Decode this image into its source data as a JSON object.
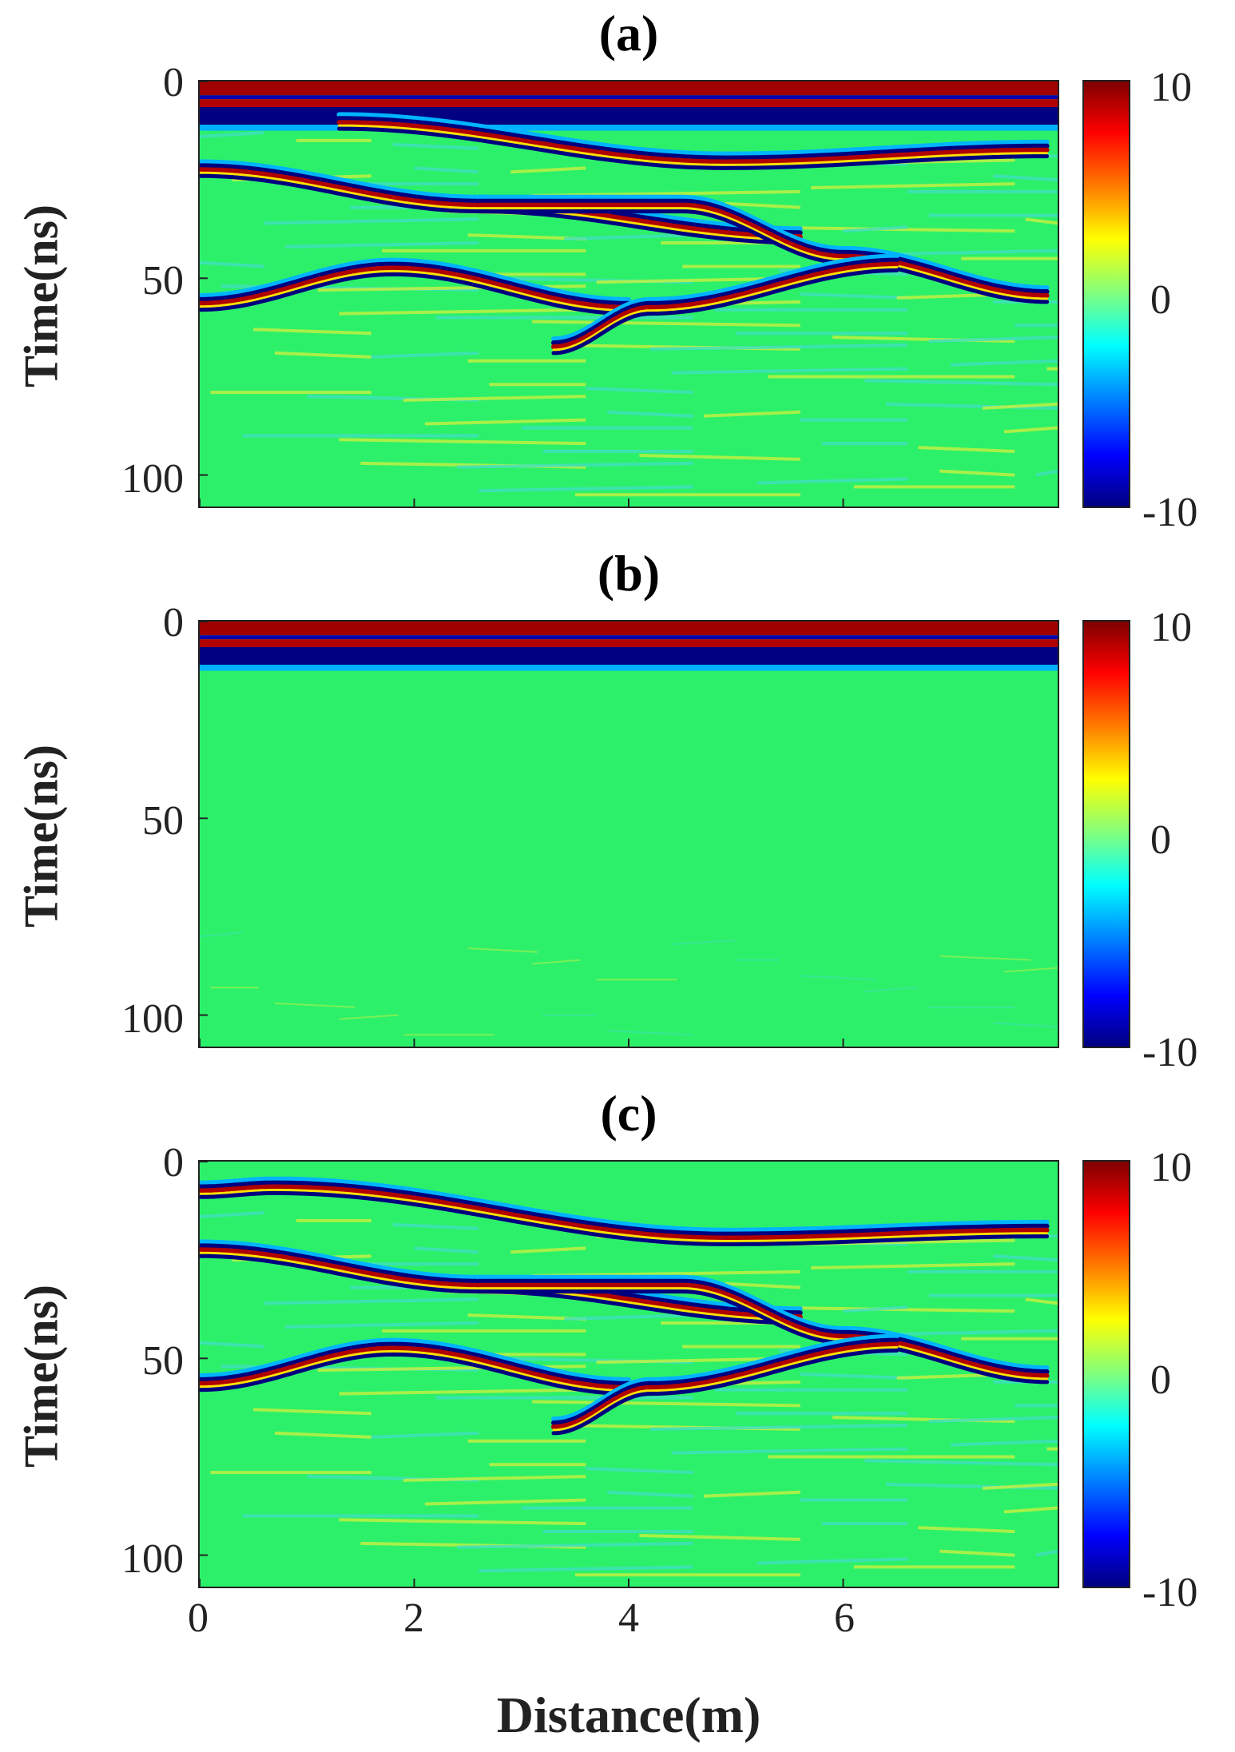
{
  "chart_data": [
    {
      "type": "heatmap",
      "panel_label": "(a)",
      "ylabel": "Time(ns)",
      "xlim": [
        0,
        8
      ],
      "ylim": [
        0,
        108
      ],
      "y_ticks": [
        "0",
        "50",
        "100"
      ],
      "colorbar": {
        "min": -10,
        "max": 10,
        "ticks": [
          "10",
          "0",
          "-10"
        ]
      },
      "features": {
        "direct_wave_band_ns": [
          0,
          12
        ],
        "reflections": [
          {
            "x": [
              1.3,
              4.9,
              7.9
            ],
            "t": [
              10,
              20,
              17
            ]
          },
          {
            "x": [
              0,
              2.6,
              5.6
            ],
            "t": [
              22,
              31,
              39
            ]
          },
          {
            "x": [
              2.6,
              4.5,
              6.0,
              7.9
            ],
            "t": [
              31,
              31,
              44,
              54
            ]
          },
          {
            "x": [
              0,
              1.8,
              4.0
            ],
            "t": [
              56,
              47,
              57
            ]
          },
          {
            "x": [
              3.3,
              4.2,
              6.5
            ],
            "t": [
              67,
              57,
              46
            ]
          }
        ]
      }
    },
    {
      "type": "heatmap",
      "panel_label": "(b)",
      "ylabel": "Time(ns)",
      "xlim": [
        0,
        8
      ],
      "ylim": [
        0,
        108
      ],
      "y_ticks": [
        "0",
        "50",
        "100"
      ],
      "colorbar": {
        "min": -10,
        "max": 10,
        "ticks": [
          "10",
          "0",
          "-10"
        ]
      },
      "features": {
        "direct_wave_band_ns": [
          0,
          12
        ],
        "reflections": []
      }
    },
    {
      "type": "heatmap",
      "panel_label": "(c)",
      "ylabel": "Time(ns)",
      "xlabel": "Distance(m)",
      "xlim": [
        0,
        8
      ],
      "ylim": [
        0,
        108
      ],
      "x_ticks": [
        "0",
        "2",
        "4",
        "6"
      ],
      "y_ticks": [
        "0",
        "50",
        "100"
      ],
      "colorbar": {
        "min": -10,
        "max": 10,
        "ticks": [
          "10",
          "0",
          "-10"
        ]
      },
      "features": {
        "direct_wave_band_ns": [],
        "reflections": [
          {
            "x": [
              0,
              0.7,
              4.9,
              7.9
            ],
            "t": [
              7,
              6,
              19,
              17
            ]
          },
          {
            "x": [
              0,
              2.6,
              5.6
            ],
            "t": [
              22,
              31,
              39
            ]
          },
          {
            "x": [
              2.6,
              4.5,
              6.0,
              7.9
            ],
            "t": [
              31,
              31,
              44,
              54
            ]
          },
          {
            "x": [
              0,
              1.8,
              4.0
            ],
            "t": [
              56,
              47,
              57
            ]
          },
          {
            "x": [
              3.3,
              4.2,
              6.5
            ],
            "t": [
              67,
              57,
              46
            ]
          }
        ]
      }
    }
  ],
  "colors": {
    "background": "#2cf06a",
    "positive": "#b00000",
    "negative": "#00007f"
  }
}
